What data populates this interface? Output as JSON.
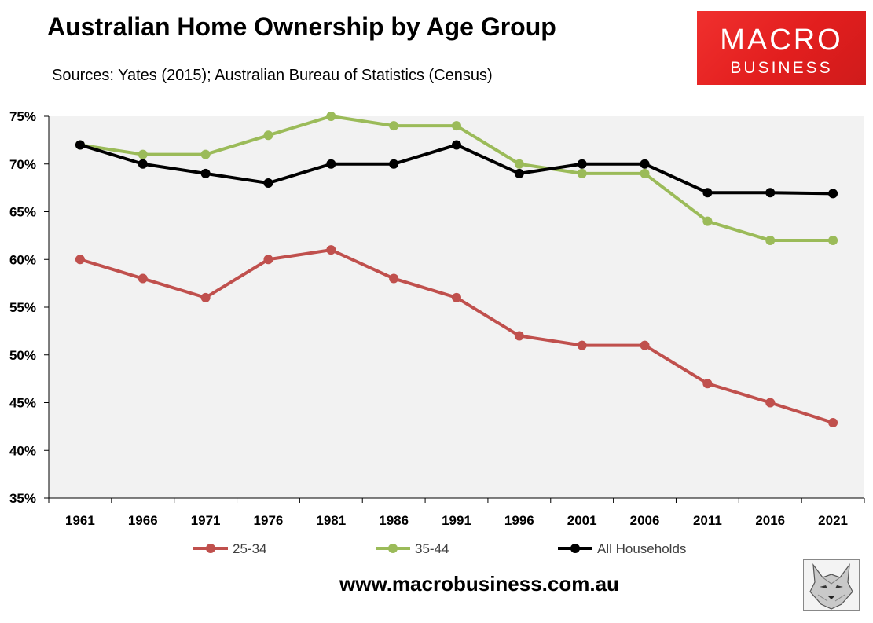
{
  "header": {
    "title": "Australian Home Ownership by Age Group",
    "subtitle": "Sources: Yates (2015); Australian Bureau of Statistics (Census)"
  },
  "logo": {
    "line1": "MACRO",
    "line2": "BUSINESS"
  },
  "footer": {
    "website": "www.macrobusiness.com.au"
  },
  "chart_data": {
    "type": "line",
    "title": "Australian Home Ownership by Age Group",
    "xlabel": "",
    "ylabel": "",
    "categories": [
      "1961",
      "1966",
      "1971",
      "1976",
      "1981",
      "1986",
      "1991",
      "1996",
      "2001",
      "2006",
      "2011",
      "2016",
      "2021"
    ],
    "ylim": [
      35,
      75
    ],
    "yticks": [
      35,
      40,
      45,
      50,
      55,
      60,
      65,
      70,
      75
    ],
    "ytick_labels": [
      "35%",
      "40%",
      "45%",
      "50%",
      "55%",
      "60%",
      "65%",
      "70%",
      "75%"
    ],
    "grid": false,
    "legend_position": "bottom",
    "series": [
      {
        "name": "25-34",
        "color": "#c0504d",
        "values": [
          60,
          58,
          56,
          60,
          61,
          58,
          56,
          52,
          51,
          51,
          47,
          45,
          42.9
        ]
      },
      {
        "name": "35-44",
        "color": "#9bbb59",
        "values": [
          72,
          71,
          71,
          73,
          75,
          74,
          74,
          70,
          69,
          69,
          64,
          62,
          62
        ]
      },
      {
        "name": "All Households",
        "color": "#000000",
        "values": [
          72,
          70,
          69,
          68,
          70,
          70,
          72,
          69,
          70,
          70,
          67,
          67,
          66.9
        ]
      }
    ]
  }
}
